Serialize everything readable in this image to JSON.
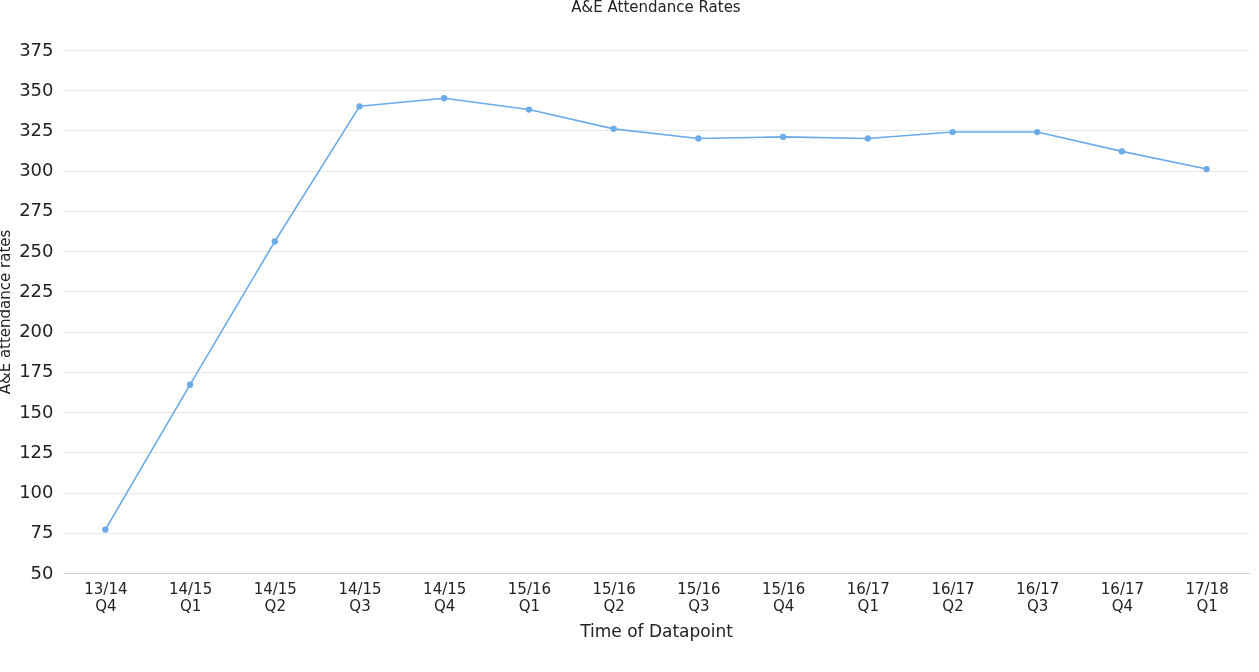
{
  "chart_data": {
    "type": "line",
    "title": "A&E Attendance Rates",
    "xlabel": "Time of Datapoint",
    "ylabel": "A&E attendance rates",
    "categories": [
      "13/14 Q4",
      "14/15 Q1",
      "14/15 Q2",
      "14/15 Q3",
      "14/15 Q4",
      "15/16 Q1",
      "15/16 Q2",
      "15/16 Q3",
      "15/16 Q4",
      "16/17 Q1",
      "16/17 Q2",
      "16/17 Q3",
      "16/17 Q4",
      "17/18 Q1"
    ],
    "series": [
      {
        "color": "#6aabe8",
        "values": [
          77,
          167,
          256,
          340,
          345,
          338,
          326,
          320,
          321,
          320,
          324,
          324,
          312,
          301
        ]
      }
    ],
    "ylim": [
      50,
      375
    ],
    "yticks": [
      50,
      75,
      100,
      125,
      150,
      175,
      200,
      225,
      250,
      275,
      300,
      325,
      350,
      375
    ],
    "grid": "y",
    "marker": "circle",
    "line_style": "solid",
    "legend": false
  }
}
